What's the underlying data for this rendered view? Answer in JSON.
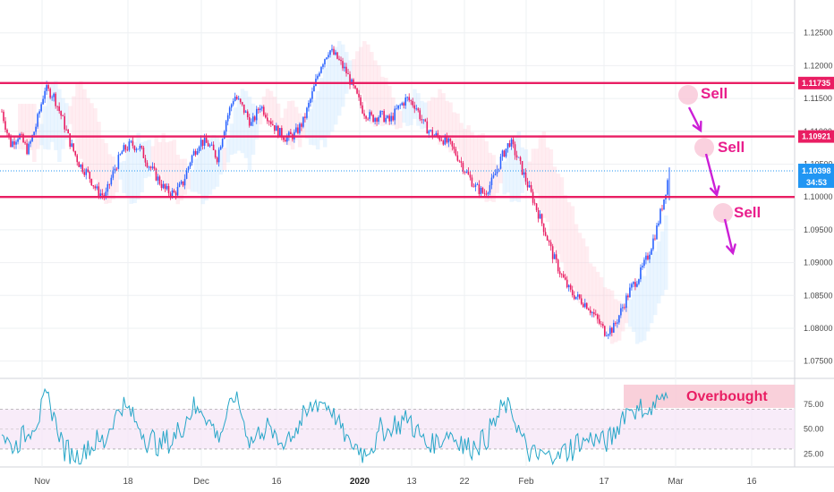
{
  "chart_data": {
    "type": "candlestick",
    "price_pane": {
      "y_ticks": [
        "1.12500",
        "1.12000",
        "1.11500",
        "1.11000",
        "1.10500",
        "1.10000",
        "1.09500",
        "1.09000",
        "1.08500",
        "1.08000",
        "1.07500"
      ],
      "ylim": [
        1.0725,
        1.13
      ],
      "horizontal_levels": [
        {
          "value": 1.11735,
          "label": "1.11735",
          "color": "#e91e63"
        },
        {
          "value": 1.10921,
          "label": "1.10921",
          "color": "#e91e63"
        },
        {
          "value": 1.1,
          "label": "",
          "color": "#e91e63"
        }
      ],
      "current_price": {
        "value": 1.10398,
        "label": "1.10398",
        "color": "#2196f3"
      },
      "countdown": "34:53",
      "price_path": [
        [
          0,
          1.113
        ],
        [
          4,
          1.108
        ],
        [
          8,
          1.1095
        ],
        [
          12,
          1.107
        ],
        [
          16,
          1.111
        ],
        [
          20,
          1.1165
        ],
        [
          24,
          1.1155
        ],
        [
          28,
          1.112
        ],
        [
          32,
          1.108
        ],
        [
          36,
          1.105
        ],
        [
          40,
          1.1035
        ],
        [
          44,
          1.101
        ],
        [
          48,
          1.1
        ],
        [
          52,
          1.104
        ],
        [
          56,
          1.107
        ],
        [
          60,
          1.108
        ],
        [
          64,
          1.1075
        ],
        [
          68,
          1.105
        ],
        [
          72,
          1.103
        ],
        [
          76,
          1.101
        ],
        [
          80,
          1.1005
        ],
        [
          84,
          1.102
        ],
        [
          88,
          1.106
        ],
        [
          92,
          1.1085
        ],
        [
          96,
          1.108
        ],
        [
          100,
          1.106
        ],
        [
          104,
          1.1115
        ],
        [
          108,
          1.1155
        ],
        [
          112,
          1.1135
        ],
        [
          116,
          1.111
        ],
        [
          120,
          1.114
        ],
        [
          124,
          1.112
        ],
        [
          128,
          1.11
        ],
        [
          132,
          1.109
        ],
        [
          136,
          1.1095
        ],
        [
          140,
          1.1115
        ],
        [
          144,
          1.1155
        ],
        [
          148,
          1.12
        ],
        [
          152,
          1.1225
        ],
        [
          156,
          1.121
        ],
        [
          160,
          1.119
        ],
        [
          164,
          1.116
        ],
        [
          168,
          1.113
        ],
        [
          172,
          1.112
        ],
        [
          176,
          1.1125
        ],
        [
          180,
          1.1115
        ],
        [
          184,
          1.1135
        ],
        [
          188,
          1.115
        ],
        [
          192,
          1.114
        ],
        [
          196,
          1.111
        ],
        [
          200,
          1.1095
        ],
        [
          204,
          1.109
        ],
        [
          208,
          1.108
        ],
        [
          212,
          1.106
        ],
        [
          216,
          1.1035
        ],
        [
          220,
          1.1015
        ],
        [
          224,
          1.1005
        ],
        [
          228,
          1.1025
        ],
        [
          232,
          1.106
        ],
        [
          236,
          1.1085
        ],
        [
          240,
          1.1055
        ],
        [
          244,
          1.102
        ],
        [
          248,
          1.0985
        ],
        [
          252,
          1.095
        ],
        [
          256,
          1.091
        ],
        [
          260,
          1.088
        ],
        [
          264,
          1.0855
        ],
        [
          268,
          1.0845
        ],
        [
          272,
          1.0835
        ],
        [
          276,
          1.0815
        ],
        [
          280,
          1.0795
        ],
        [
          284,
          1.08
        ],
        [
          288,
          1.083
        ],
        [
          292,
          1.086
        ],
        [
          296,
          1.088
        ],
        [
          300,
          1.091
        ],
        [
          304,
          1.095
        ],
        [
          308,
          1.1005
        ],
        [
          310,
          1.104
        ]
      ],
      "annotations": [
        {
          "text": "Sell",
          "color": "#e91e8c"
        },
        {
          "text": "Sell",
          "color": "#e91e8c"
        },
        {
          "text": "Sell",
          "color": "#e91e8c"
        }
      ]
    },
    "rsi_pane": {
      "y_ticks": [
        "75.00",
        "50.00",
        "25.00"
      ],
      "ylim": [
        12,
        100
      ],
      "levels": [
        70,
        50,
        30
      ],
      "series_color": "#26a6c8",
      "annotation": {
        "text": "Overbought",
        "color": "#e91e63"
      }
    },
    "x_ticks": [
      "Nov",
      "18",
      "Dec",
      "16",
      "2020",
      "13",
      "22",
      "Feb",
      "17",
      "Mar",
      "16"
    ],
    "x_ticks_bold": [
      "2020"
    ],
    "colors": {
      "bull": "#2962ff",
      "bear": "#e91e63",
      "level": "#e91e63",
      "price_line": "#2196f3",
      "rsi": "#26a6c8"
    }
  }
}
